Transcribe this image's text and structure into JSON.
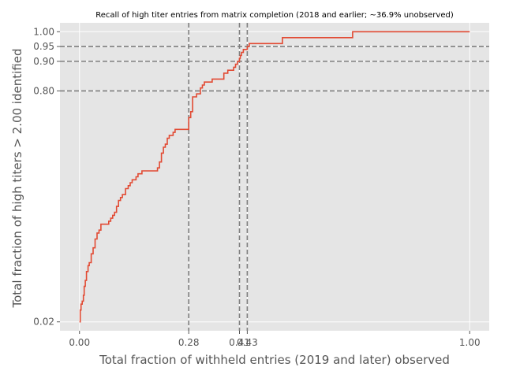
{
  "chart_data": {
    "type": "line",
    "title": "Recall of high titer entries from matrix completion (2018 and earlier; ~36.9% unobserved)",
    "xlabel": "Total fraction of withheld entries (2019 and later) observed",
    "ylabel": "Total fraction of high titers > 2.00 identified",
    "xlim": [
      -0.05,
      1.05
    ],
    "ylim": [
      -0.01,
      1.03
    ],
    "grid": true,
    "background": "#e5e5e5",
    "line_color": "#e24a33",
    "xticks": [
      {
        "value": 0.0,
        "label": "0.00"
      },
      {
        "value": 0.28,
        "label": "0.28"
      },
      {
        "value": 0.41,
        "label": "0.41"
      },
      {
        "value": 0.43,
        "label": "0.43"
      },
      {
        "value": 1.0,
        "label": "1.00"
      }
    ],
    "yticks": [
      {
        "value": 0.02,
        "label": "0.02"
      },
      {
        "value": 0.8,
        "label": "0.80"
      },
      {
        "value": 0.9,
        "label": "0.90"
      },
      {
        "value": 0.95,
        "label": "0.95"
      },
      {
        "value": 1.0,
        "label": "1.00"
      }
    ],
    "reference_lines": {
      "x": [
        0.28,
        0.41,
        0.43
      ],
      "y": [
        0.8,
        0.9,
        0.95
      ]
    },
    "series": [
      {
        "x": [
          0.0,
          0.002,
          0.004,
          0.007,
          0.01,
          0.012,
          0.015,
          0.018,
          0.022,
          0.025,
          0.03,
          0.035,
          0.04,
          0.045,
          0.05,
          0.055,
          0.06,
          0.065,
          0.07,
          0.075,
          0.08,
          0.085,
          0.09,
          0.095,
          0.1,
          0.105,
          0.11,
          0.115,
          0.118,
          0.12,
          0.125,
          0.13,
          0.135,
          0.14,
          0.145,
          0.15,
          0.16,
          0.165,
          0.17,
          0.175,
          0.2,
          0.205,
          0.21,
          0.215,
          0.22,
          0.225,
          0.23,
          0.24,
          0.245,
          0.25,
          0.255,
          0.26,
          0.265,
          0.28,
          0.285,
          0.29,
          0.3,
          0.31,
          0.315,
          0.32,
          0.33,
          0.34,
          0.36,
          0.37,
          0.38,
          0.395,
          0.4,
          0.405,
          0.41,
          0.412,
          0.415,
          0.42,
          0.425,
          0.43,
          0.432,
          0.435,
          0.5,
          0.52,
          0.6,
          0.64,
          0.7,
          1.0
        ],
        "y": [
          0.02,
          0.06,
          0.08,
          0.09,
          0.11,
          0.14,
          0.16,
          0.19,
          0.21,
          0.22,
          0.25,
          0.27,
          0.3,
          0.32,
          0.33,
          0.35,
          0.35,
          0.35,
          0.35,
          0.36,
          0.37,
          0.38,
          0.39,
          0.41,
          0.43,
          0.44,
          0.45,
          0.45,
          0.47,
          0.47,
          0.48,
          0.49,
          0.5,
          0.5,
          0.51,
          0.52,
          0.53,
          0.53,
          0.53,
          0.53,
          0.54,
          0.56,
          0.59,
          0.61,
          0.62,
          0.64,
          0.65,
          0.66,
          0.67,
          0.67,
          0.67,
          0.67,
          0.67,
          0.71,
          0.73,
          0.78,
          0.79,
          0.81,
          0.82,
          0.83,
          0.83,
          0.84,
          0.84,
          0.86,
          0.87,
          0.88,
          0.89,
          0.9,
          0.91,
          0.92,
          0.93,
          0.94,
          0.94,
          0.95,
          0.95,
          0.96,
          0.96,
          0.98,
          0.98,
          0.98,
          1.0,
          1.0
        ]
      }
    ]
  }
}
